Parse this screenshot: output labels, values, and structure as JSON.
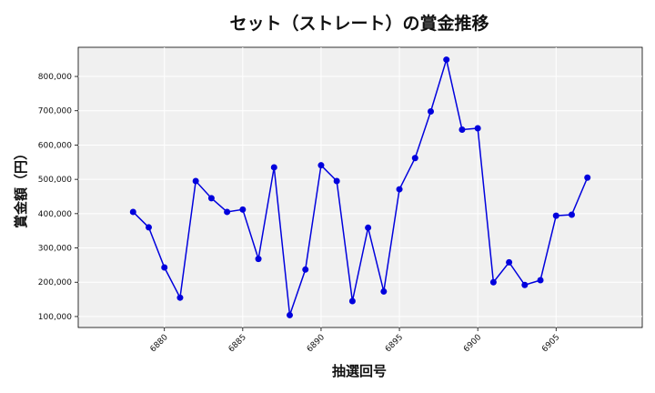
{
  "chart_data": {
    "type": "line",
    "title": "セット（ストレート）の賞金推移",
    "xlabel": "抽選回号",
    "ylabel": "賞金額（円）",
    "x": [
      6878,
      6879,
      6880,
      6881,
      6882,
      6883,
      6884,
      6885,
      6886,
      6887,
      6888,
      6889,
      6890,
      6891,
      6892,
      6893,
      6894,
      6895,
      6896,
      6897,
      6898,
      6899,
      6900,
      6901,
      6902,
      6903,
      6904,
      6905,
      6906,
      6907
    ],
    "series": [
      {
        "values": [
          405000,
          360000,
          243000,
          155000,
          495000,
          445000,
          405000,
          412000,
          268000,
          535000,
          104000,
          237000,
          541000,
          495000,
          145000,
          359000,
          173000,
          471000,
          562000,
          698000,
          849000,
          645000,
          649000,
          200000,
          258000,
          192000,
          206000,
          394000,
          397000,
          505000
        ]
      }
    ],
    "xlim": [
      6874.5,
      6910.5
    ],
    "ylim": [
      68000,
      885000
    ],
    "xticks": [
      "6880",
      "6885",
      "6890",
      "6895",
      "6900",
      "6905"
    ],
    "yticks": [
      "100,000",
      "200,000",
      "300,000",
      "400,000",
      "500,000",
      "600,000",
      "700,000",
      "800,000"
    ],
    "grid": true,
    "colors": {
      "line": "#0000dd",
      "marker": "#0000dd",
      "plot_bg": "#f0f0f0",
      "grid": "#ffffff"
    }
  }
}
